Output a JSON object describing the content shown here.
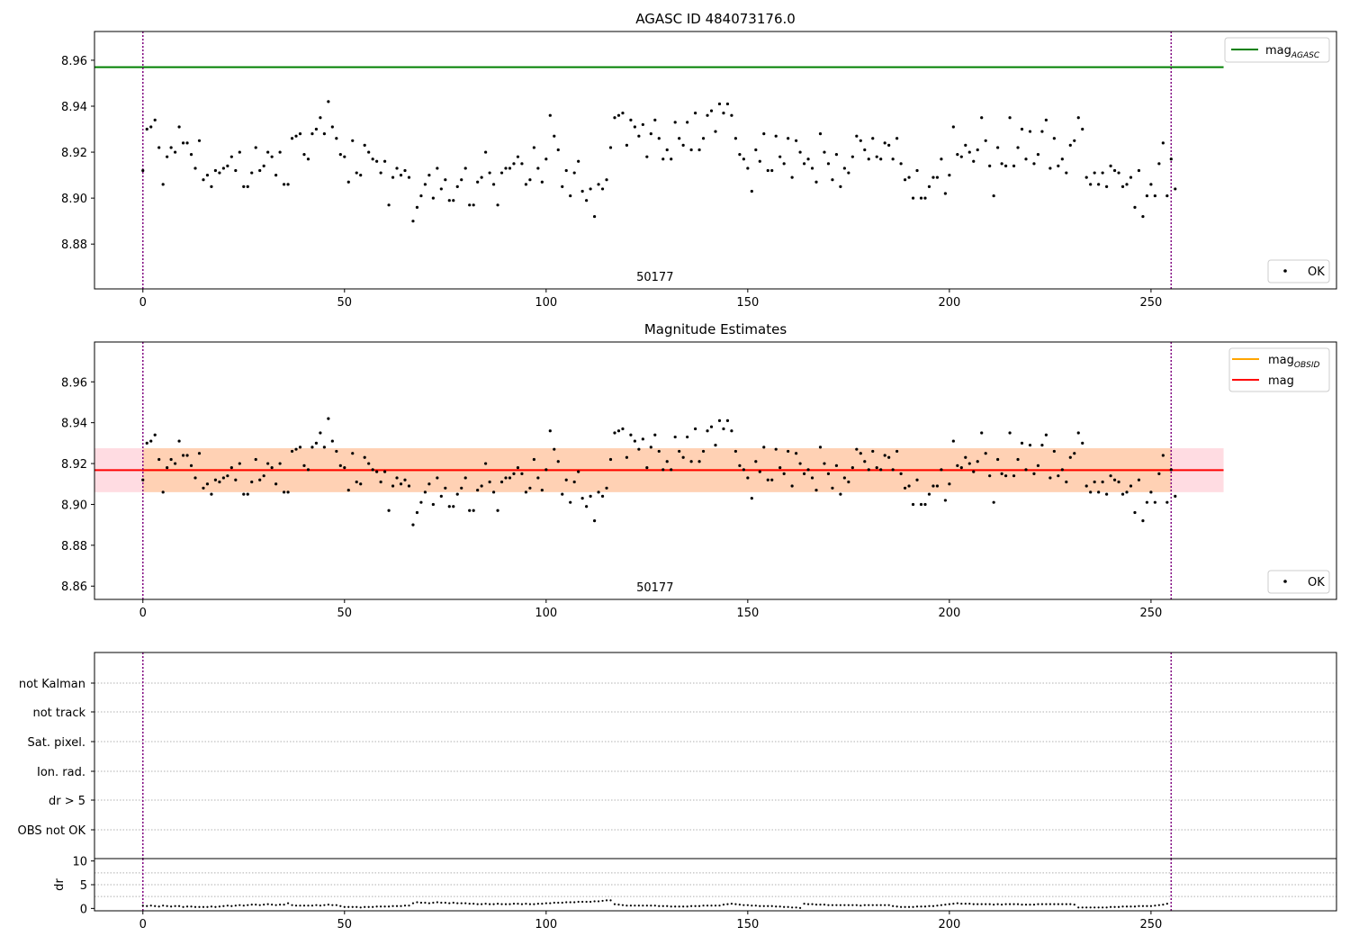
{
  "chart_data": [
    {
      "type": "scatter",
      "title": "AGASC ID 484073176.0",
      "xlim": [
        -12,
        296
      ],
      "ylim": [
        8.8605,
        8.9725
      ],
      "yticks": [
        8.88,
        8.9,
        8.92,
        8.94,
        8.96
      ],
      "ytick_labels": [
        "8.88",
        "8.90",
        "8.92",
        "8.94",
        "8.96"
      ],
      "xticks": [
        0,
        50,
        100,
        150,
        200,
        250
      ],
      "xtick_labels": [
        "0",
        "50",
        "100",
        "150",
        "200",
        "250"
      ],
      "obsid_label": "50177",
      "obsid_label_x": 127,
      "obs_boundaries": [
        0,
        255
      ],
      "hline": {
        "name": "mag",
        "subscript": "AGASC",
        "y": 8.957,
        "color": "#008000",
        "x_range": [
          -12,
          268
        ]
      },
      "legend_upper": [
        {
          "name": "mag",
          "subscript": "AGASC",
          "color": "#008000"
        }
      ],
      "legend_lower": [
        {
          "name": "OK"
        }
      ],
      "series": [
        {
          "name": "OK",
          "color": "#000000"
        }
      ]
    },
    {
      "type": "scatter",
      "title": "Magnitude Estimates",
      "xlim": [
        -12,
        296
      ],
      "ylim": [
        8.8535,
        8.9795
      ],
      "yticks": [
        8.86,
        8.88,
        8.9,
        8.92,
        8.94,
        8.96
      ],
      "ytick_labels": [
        "8.86",
        "8.88",
        "8.90",
        "8.92",
        "8.94",
        "8.96"
      ],
      "xticks": [
        0,
        50,
        100,
        150,
        200,
        250
      ],
      "xtick_labels": [
        "0",
        "50",
        "100",
        "150",
        "200",
        "250"
      ],
      "obsid_label": "50177",
      "obsid_label_x": 127,
      "obs_boundaries": [
        0,
        255
      ],
      "mag_line": {
        "name": "mag",
        "y": 8.9168,
        "color": "#ff0000",
        "band": [
          8.906,
          8.9275
        ],
        "band_color": "#ffc0cb",
        "x_range": [
          -12,
          268
        ]
      },
      "mag_obsid": {
        "name": "mag",
        "subscript": "OBSID",
        "y": 8.9168,
        "color": "#ffa500",
        "band": [
          8.906,
          8.9275
        ],
        "x_range": [
          0,
          255
        ]
      },
      "legend_upper": [
        {
          "name": "mag",
          "subscript": "OBSID",
          "color": "#ffa500"
        },
        {
          "name": "mag",
          "color": "#ff0000"
        }
      ],
      "legend_lower": [
        {
          "name": "OK"
        }
      ],
      "series": [
        {
          "name": "OK",
          "color": "#000000"
        }
      ]
    },
    {
      "type": "scatter",
      "xlim": [
        -12,
        296
      ],
      "flag_labels": [
        "not Kalman",
        "not track",
        "Sat. pixel.",
        "Ion. rad.",
        "dr > 5",
        "OBS not OK"
      ],
      "obs_boundaries": [
        0,
        255
      ]
    },
    {
      "type": "scatter",
      "ylabel": "dr",
      "xlim": [
        -12,
        296
      ],
      "ylim": [
        -0.5,
        10.5
      ],
      "yticks": [
        0,
        5,
        10
      ],
      "ytick_labels": [
        "0",
        "5",
        "10"
      ],
      "xticks": [
        0,
        50,
        100,
        150,
        200,
        250
      ],
      "xtick_labels": [
        "0",
        "50",
        "100",
        "150",
        "200",
        "250"
      ],
      "obs_boundaries": [
        0,
        255
      ]
    }
  ],
  "mag_values": [
    8.912,
    8.93,
    8.931,
    8.934,
    8.922,
    8.906,
    8.918,
    8.922,
    8.92,
    8.931,
    8.924,
    8.924,
    8.919,
    8.913,
    8.925,
    8.908,
    8.91,
    8.905,
    8.912,
    8.911,
    8.913,
    8.914,
    8.918,
    8.912,
    8.92,
    8.905,
    8.905,
    8.911,
    8.922,
    8.912,
    8.914,
    8.92,
    8.918,
    8.91,
    8.92,
    8.906,
    8.906,
    8.926,
    8.927,
    8.928,
    8.919,
    8.917,
    8.928,
    8.93,
    8.935,
    8.928,
    8.942,
    8.931,
    8.926,
    8.919,
    8.918,
    8.907,
    8.925,
    8.911,
    8.91,
    8.923,
    8.92,
    8.917,
    8.916,
    8.911,
    8.916,
    8.897,
    8.909,
    8.913,
    8.91,
    8.912,
    8.909,
    8.89,
    8.896,
    8.901,
    8.906,
    8.91,
    8.9,
    8.913,
    8.904,
    8.908,
    8.899,
    8.899,
    8.905,
    8.908,
    8.913,
    8.897,
    8.897,
    8.907,
    8.909,
    8.92,
    8.911,
    8.906,
    8.897,
    8.911,
    8.913,
    8.913,
    8.915,
    8.918,
    8.915,
    8.906,
    8.908,
    8.922,
    8.913,
    8.907,
    8.917,
    8.936,
    8.927,
    8.921,
    8.905,
    8.912,
    8.901,
    8.911,
    8.916,
    8.903,
    8.899,
    8.904,
    8.892,
    8.906,
    8.904,
    8.908,
    8.922,
    8.935,
    8.936,
    8.937,
    8.923,
    8.934,
    8.931,
    8.927,
    8.932,
    8.918,
    8.928,
    8.934,
    8.926,
    8.917,
    8.921,
    8.917,
    8.933,
    8.926,
    8.923,
    8.933,
    8.921,
    8.937,
    8.921,
    8.926,
    8.936,
    8.938,
    8.929,
    8.941,
    8.937,
    8.941,
    8.936,
    8.926,
    8.919,
    8.917,
    8.913,
    8.903,
    8.921,
    8.916,
    8.928,
    8.912,
    8.912,
    8.927,
    8.918,
    8.915,
    8.926,
    8.909,
    8.925,
    8.92,
    8.915,
    8.917,
    8.913,
    8.907,
    8.928,
    8.92,
    8.915,
    8.908,
    8.919,
    8.905,
    8.913,
    8.911,
    8.918,
    8.927,
    8.925,
    8.921,
    8.917,
    8.926,
    8.918,
    8.917,
    8.924,
    8.923,
    8.917,
    8.926,
    8.915,
    8.908,
    8.909,
    8.9,
    8.912,
    8.9,
    8.9,
    8.905,
    8.909,
    8.909,
    8.917,
    8.902,
    8.91,
    8.931,
    8.919,
    8.918,
    8.923,
    8.92,
    8.916,
    8.921,
    8.935,
    8.925,
    8.914,
    8.901,
    8.922,
    8.915,
    8.914,
    8.935,
    8.914,
    8.922,
    8.93,
    8.917,
    8.929,
    8.915,
    8.919,
    8.929,
    8.934,
    8.913,
    8.926,
    8.914,
    8.917,
    8.911,
    8.923,
    8.925,
    8.935,
    8.93,
    8.909,
    8.906,
    8.911,
    8.906,
    8.911,
    8.905,
    8.914,
    8.912,
    8.911,
    8.905,
    8.906,
    8.909,
    8.896,
    8.912,
    8.892,
    8.901,
    8.906,
    8.901,
    8.915,
    8.924,
    8.901,
    8.917,
    8.904
  ],
  "dr_values": [
    0.6,
    0.5,
    0.6,
    0.5,
    0.4,
    0.6,
    0.5,
    0.4,
    0.5,
    0.5,
    0.3,
    0.4,
    0.4,
    0.3,
    0.3,
    0.3,
    0.3,
    0.4,
    0.3,
    0.4,
    0.5,
    0.6,
    0.5,
    0.6,
    0.7,
    0.6,
    0.7,
    0.8,
    0.8,
    0.7,
    0.8,
    0.9,
    0.8,
    0.7,
    0.8,
    0.8,
    1.1,
    0.7,
    0.6,
    0.6,
    0.6,
    0.6,
    0.6,
    0.7,
    0.6,
    0.7,
    0.8,
    0.7,
    0.7,
    0.5,
    0.3,
    0.3,
    0.3,
    0.3,
    0.2,
    0.3,
    0.3,
    0.3,
    0.4,
    0.4,
    0.4,
    0.4,
    0.5,
    0.5,
    0.5,
    0.6,
    0.6,
    1.1,
    1.3,
    1.2,
    1.2,
    1.1,
    1.2,
    1.3,
    1.2,
    1.2,
    1.1,
    1.2,
    1.1,
    1.1,
    1.1,
    1.0,
    1.0,
    0.9,
    0.9,
    1.0,
    0.9,
    0.9,
    1.0,
    0.9,
    0.9,
    0.9,
    1.0,
    1.0,
    0.9,
    1.0,
    0.9,
    0.9,
    1.0,
    1.0,
    1.1,
    1.1,
    1.2,
    1.2,
    1.2,
    1.3,
    1.3,
    1.3,
    1.4,
    1.4,
    1.4,
    1.4,
    1.5,
    1.5,
    1.6,
    1.7,
    1.7,
    0.9,
    0.8,
    0.7,
    0.6,
    0.6,
    0.6,
    0.6,
    0.6,
    0.6,
    0.6,
    0.6,
    0.5,
    0.5,
    0.5,
    0.4,
    0.4,
    0.4,
    0.4,
    0.4,
    0.5,
    0.5,
    0.5,
    0.6,
    0.6,
    0.6,
    0.6,
    0.6,
    0.8,
    0.9,
    1.0,
    0.9,
    0.8,
    0.7,
    0.7,
    0.6,
    0.6,
    0.5,
    0.5,
    0.5,
    0.5,
    0.4,
    0.4,
    0.3,
    0.3,
    0.2,
    0.2,
    0.1,
    1.0,
    0.9,
    0.9,
    0.8,
    0.8,
    0.8,
    0.7,
    0.7,
    0.7,
    0.7,
    0.7,
    0.7,
    0.7,
    0.7,
    0.6,
    0.7,
    0.7,
    0.7,
    0.7,
    0.7,
    0.7,
    0.7,
    0.5,
    0.4,
    0.3,
    0.3,
    0.3,
    0.3,
    0.4,
    0.4,
    0.4,
    0.5,
    0.5,
    0.6,
    0.7,
    0.8,
    0.9,
    1.0,
    1.1,
    1.0,
    1.0,
    1.0,
    0.9,
    0.9,
    0.9,
    0.9,
    0.9,
    0.8,
    0.9,
    0.8,
    0.9,
    0.9,
    0.9,
    0.9,
    0.8,
    0.8,
    0.8,
    0.8,
    0.9,
    0.9,
    0.9,
    0.9,
    0.9,
    0.9,
    0.9,
    0.9,
    0.9,
    0.8,
    0.2,
    0.2,
    0.2,
    0.2,
    0.2,
    0.2,
    0.2,
    0.2,
    0.3,
    0.3,
    0.3,
    0.4,
    0.4,
    0.4,
    0.4,
    0.5,
    0.5,
    0.5,
    0.5,
    0.6,
    0.7,
    0.8,
    1.0
  ]
}
